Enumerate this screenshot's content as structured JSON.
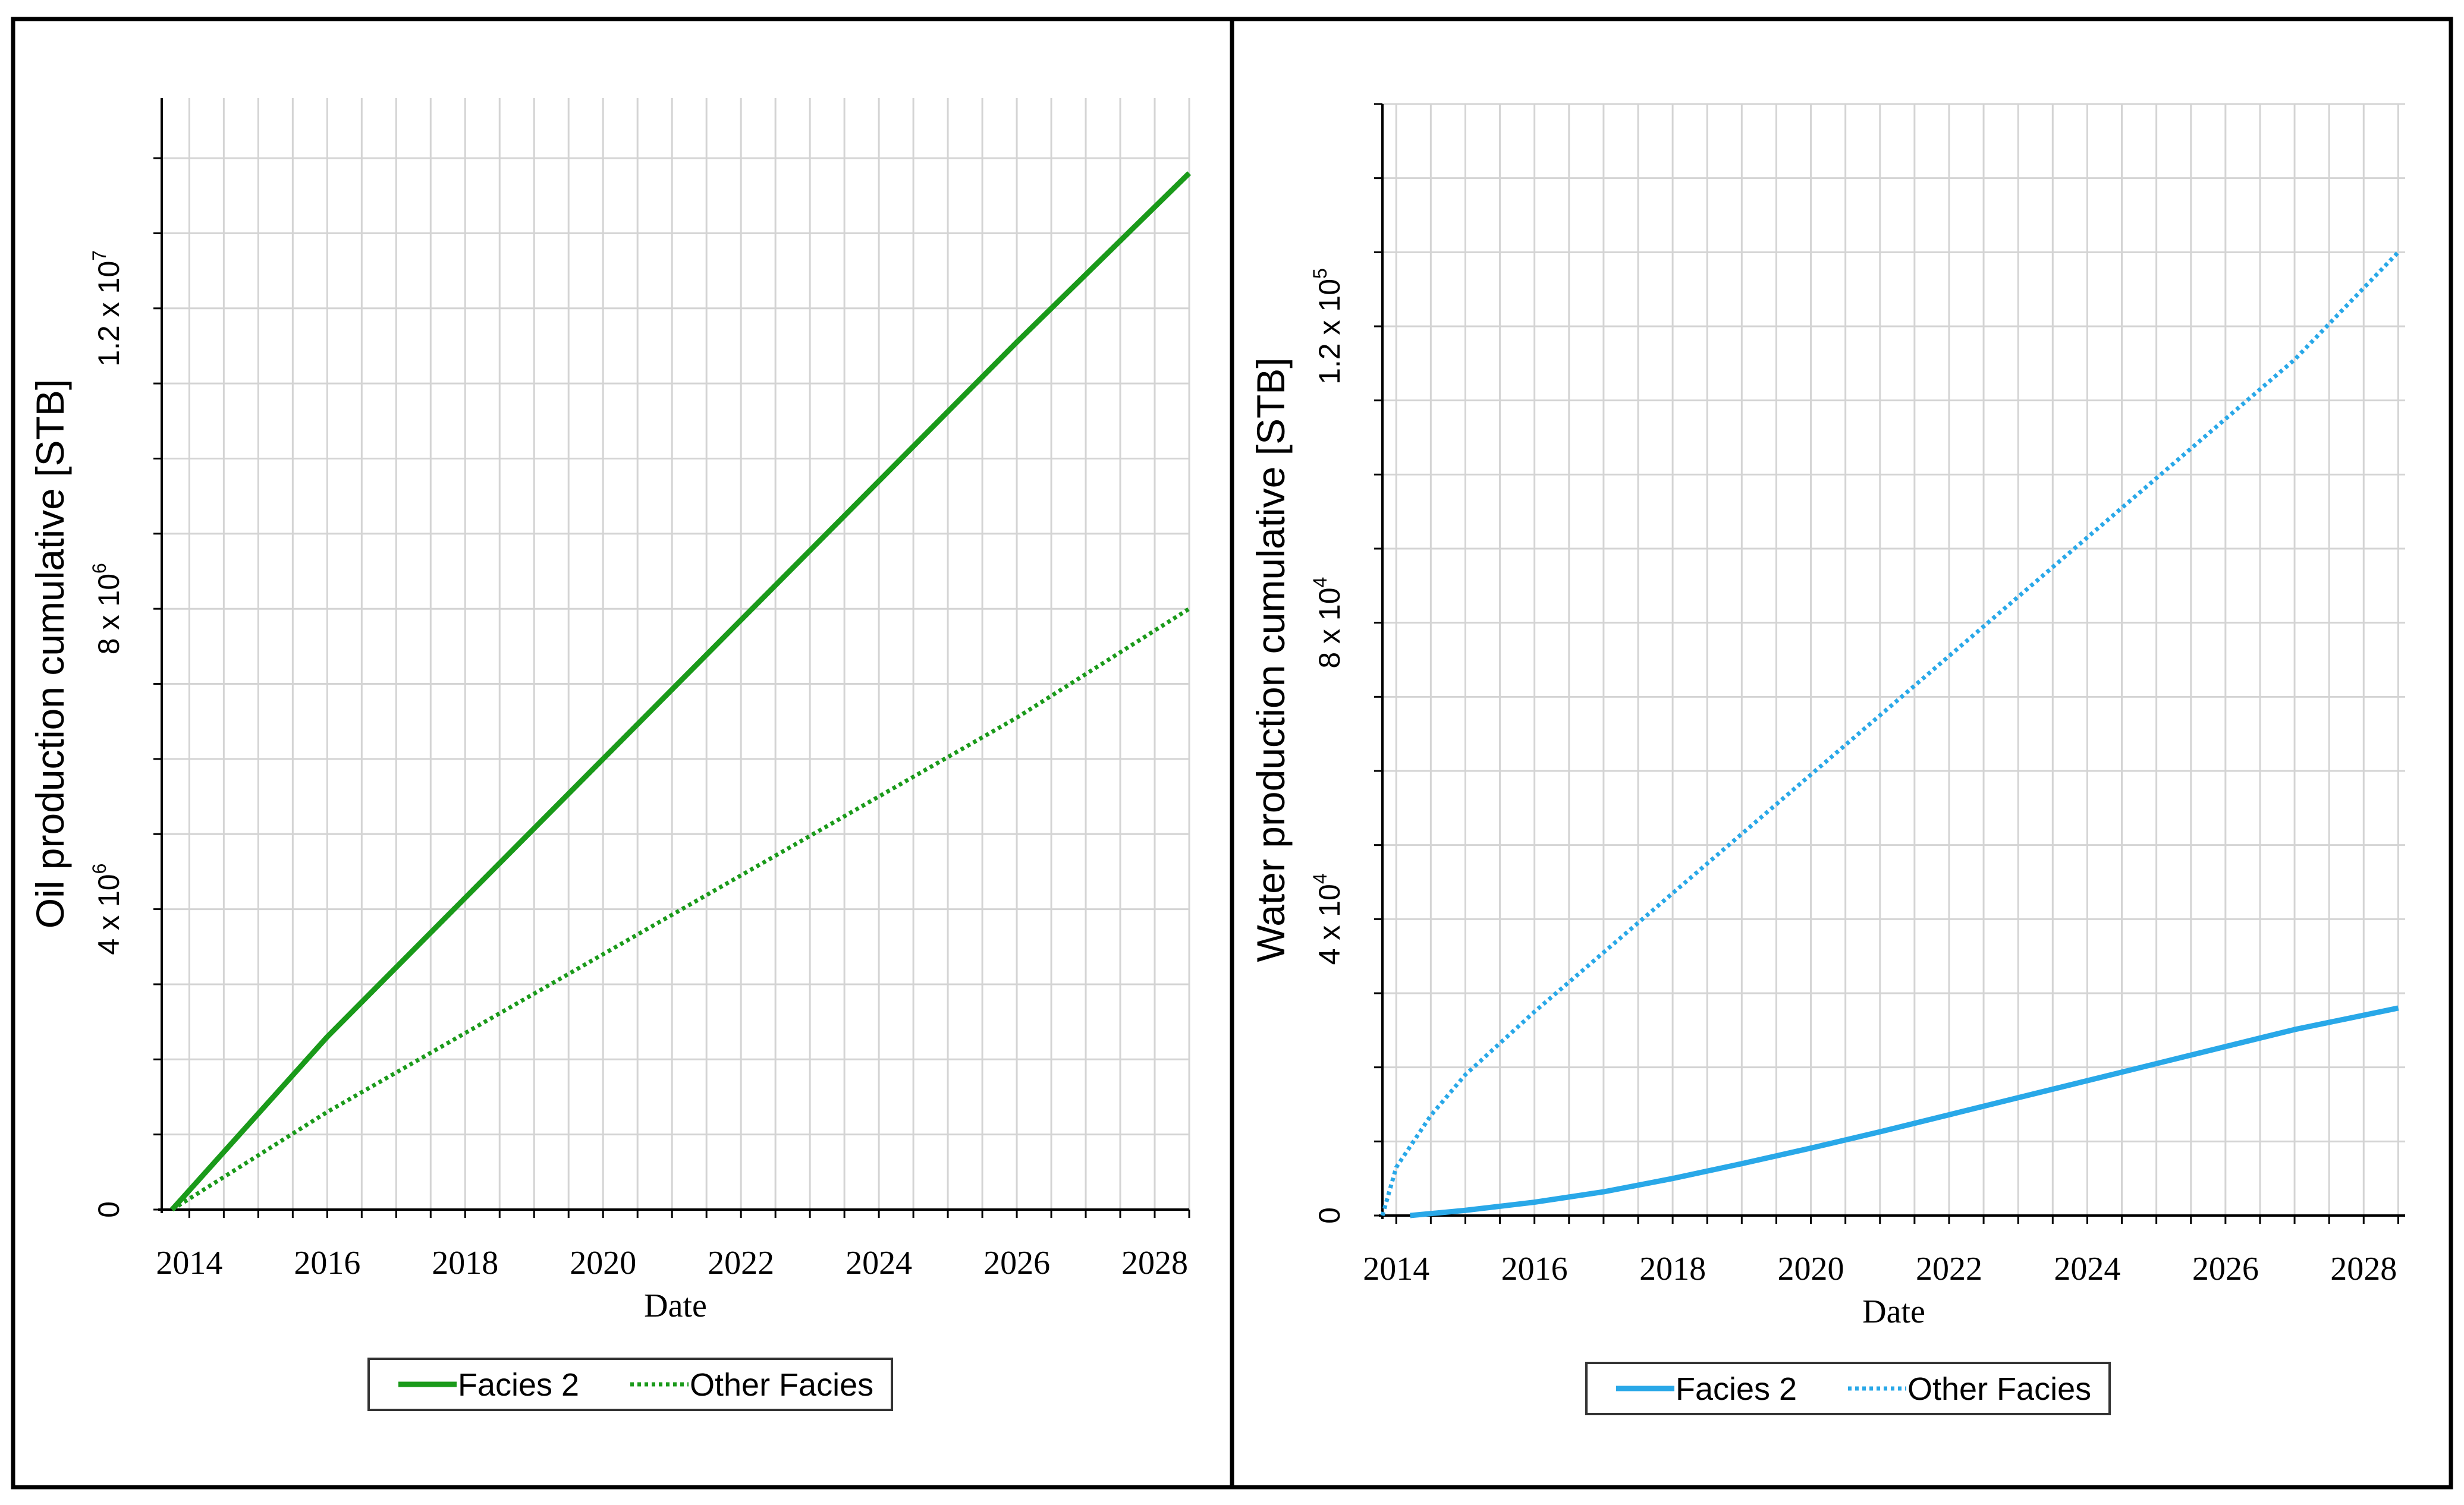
{
  "chart_data": [
    {
      "type": "line",
      "xlabel": "Date",
      "ylabel": "Oil production cumulative [STB]",
      "xlim": [
        2013.6,
        2028.5
      ],
      "ylim": [
        0,
        14800000
      ],
      "x_ticks": [
        2014,
        2016,
        2018,
        2020,
        2022,
        2024,
        2026,
        2028
      ],
      "x_tick_labels": [
        "2014",
        "2016",
        "2018",
        "2020",
        "2022",
        "2024",
        "2026",
        "2028"
      ],
      "y_ticks": [
        0,
        4000000,
        8000000,
        12000000
      ],
      "y_tick_labels": [
        {
          "mantissa": "0",
          "exp": ""
        },
        {
          "mantissa": "4 x 10",
          "exp": "6"
        },
        {
          "mantissa": "8 x 10",
          "exp": "6"
        },
        {
          "mantissa": "1.2 x 10",
          "exp": "7"
        }
      ],
      "grid": true,
      "legend": "bottom-center",
      "color": "#1a9a1a",
      "series": [
        {
          "name": "Facies 2",
          "style": "solid",
          "x": [
            2013.75,
            2016,
            2018,
            2020,
            2022,
            2024,
            2026,
            2028.5
          ],
          "values": [
            0,
            2300000,
            4150000,
            6000000,
            7850000,
            9700000,
            11550000,
            13800000
          ]
        },
        {
          "name": "Other Facies",
          "style": "dotted",
          "x": [
            2013.75,
            2016,
            2018,
            2020,
            2022,
            2024,
            2026,
            2028.5
          ],
          "values": [
            0,
            1300000,
            2350000,
            3400000,
            4450000,
            5500000,
            6550000,
            8000000
          ]
        }
      ]
    },
    {
      "type": "line",
      "xlabel": "Date",
      "ylabel": "Water production cumulative [STB]",
      "xlim": [
        2013.8,
        2028.6
      ],
      "ylim": [
        0,
        150000
      ],
      "x_ticks": [
        2014,
        2016,
        2018,
        2020,
        2022,
        2024,
        2026,
        2028
      ],
      "x_tick_labels": [
        "2014",
        "2016",
        "2018",
        "2020",
        "2022",
        "2024",
        "2026",
        "2028"
      ],
      "y_ticks": [
        0,
        40000,
        80000,
        120000
      ],
      "y_tick_labels": [
        {
          "mantissa": "0",
          "exp": ""
        },
        {
          "mantissa": "4 x 10",
          "exp": "4"
        },
        {
          "mantissa": "8 x 10",
          "exp": "4"
        },
        {
          "mantissa": "1.2 x 10",
          "exp": "5"
        }
      ],
      "grid": true,
      "legend": "bottom-center",
      "color": "#29a8e8",
      "series": [
        {
          "name": "Facies 2",
          "style": "solid",
          "x": [
            2014.2,
            2015,
            2016,
            2017,
            2018,
            2019,
            2020,
            2021,
            2022,
            2023,
            2024,
            2025,
            2026,
            2027,
            2028.5
          ],
          "values": [
            0,
            700,
            1800,
            3200,
            5000,
            7000,
            9100,
            11300,
            13600,
            15900,
            18200,
            20500,
            22800,
            25100,
            28000
          ]
        },
        {
          "name": "Other Facies",
          "style": "dotted",
          "x": [
            2013.8,
            2014,
            2014.5,
            2015,
            2016,
            2017,
            2018,
            2019,
            2020,
            2021,
            2022,
            2023,
            2024,
            2025,
            2026,
            2027,
            2028.5
          ],
          "values": [
            0,
            6500,
            13500,
            19000,
            27500,
            35500,
            43500,
            51500,
            59500,
            67500,
            75500,
            83500,
            91500,
            99500,
            107500,
            115500,
            130000
          ]
        }
      ]
    }
  ]
}
